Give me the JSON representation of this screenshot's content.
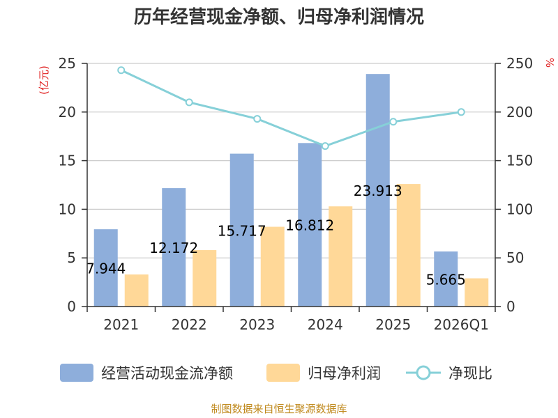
{
  "chart_data": {
    "type": "bar",
    "title": "历年经营现金净额、归母净利润情况",
    "categories": [
      "2021",
      "2022",
      "2023",
      "2024",
      "2025",
      "2026Q1"
    ],
    "series": [
      {
        "name": "经营活动现金流净额",
        "kind": "bar",
        "axis": "left",
        "color": "#8eaedb",
        "values": [
          7.944,
          12.172,
          15.717,
          16.812,
          23.913,
          5.665
        ]
      },
      {
        "name": "归母净利润",
        "kind": "bar",
        "axis": "left",
        "color": "#ffd898",
        "values": [
          3.3,
          5.8,
          8.2,
          10.3,
          12.6,
          2.9
        ]
      },
      {
        "name": "净现比",
        "kind": "line",
        "axis": "right",
        "color": "#86d0d8",
        "values": [
          243,
          210,
          193,
          165,
          190,
          200
        ]
      }
    ],
    "data_labels": [
      "7.944",
      "12.172",
      "15.717",
      "16.812",
      "23.913",
      "5.665"
    ],
    "y_left": {
      "unit": "(亿元)",
      "ylim": [
        0,
        25
      ],
      "ticks": [
        "0",
        "5",
        "10",
        "15",
        "20",
        "25"
      ]
    },
    "y_right": {
      "unit": "%",
      "ylim": [
        0,
        250
      ],
      "ticks": [
        "0",
        "50",
        "100",
        "150",
        "200",
        "250"
      ]
    },
    "legend_position": "bottom",
    "grid": true
  },
  "source": "制图数据来自恒生聚源数据库"
}
